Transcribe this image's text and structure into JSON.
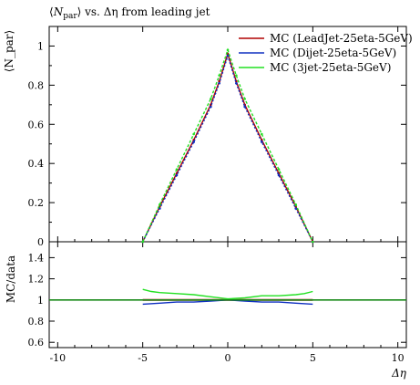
{
  "chart_data": {
    "type": "line",
    "title": "⟨N_par⟩ vs. Δη from leading jet",
    "title_parts": {
      "pre": "⟨",
      "main": "N",
      "sub": "par",
      "post": "⟩ vs. Δη from leading jet"
    },
    "xlabel": "Δη",
    "main_ylabel": "⟨N_par⟩",
    "ratio_ylabel": "MC/data",
    "xlim": [
      -10.5,
      10.5
    ],
    "main_ylim": [
      0,
      1.1
    ],
    "ratio_ylim": [
      0.55,
      1.55
    ],
    "x_ticks": [
      -10,
      -5,
      0,
      5,
      10
    ],
    "x_tick_labels": [
      "-10",
      "-5",
      "0",
      "5",
      "10"
    ],
    "main_y_ticks": [
      0,
      0.2,
      0.4,
      0.6,
      0.8,
      1
    ],
    "main_y_tick_labels": [
      "0",
      "0.2",
      "0.4",
      "0.6",
      "0.8",
      "1"
    ],
    "ratio_y_ticks": [
      0.6,
      0.8,
      1,
      1.2,
      1.4
    ],
    "ratio_y_tick_labels": [
      "0.6",
      "0.8",
      "1",
      "1.2",
      "1.4"
    ],
    "grid": false,
    "legend_position": "top-right",
    "series": [
      {
        "name": "MC (LeadJet-25eta-5GeV)",
        "color": "#b00000",
        "x": [
          -5,
          -4,
          -3,
          -2,
          -1,
          -0.5,
          0,
          0.5,
          1,
          2,
          3,
          4,
          5
        ],
        "y": [
          0.0,
          0.18,
          0.35,
          0.52,
          0.7,
          0.82,
          0.96,
          0.82,
          0.7,
          0.52,
          0.35,
          0.18,
          0.0
        ],
        "ratio_x": [
          -5,
          -4,
          -3,
          -2,
          -1,
          0,
          1,
          2,
          3,
          4,
          5
        ],
        "ratio_y": [
          1.0,
          1.0,
          1.0,
          1.0,
          1.0,
          1.0,
          1.0,
          1.0,
          1.0,
          1.0,
          1.0
        ]
      },
      {
        "name": "MC (Dijet-25eta-5GeV)",
        "color": "#1030c0",
        "x": [
          -5,
          -4,
          -3,
          -2,
          -1,
          -0.5,
          0,
          0.5,
          1,
          2,
          3,
          4,
          5
        ],
        "y": [
          0.0,
          0.17,
          0.34,
          0.51,
          0.69,
          0.81,
          0.95,
          0.81,
          0.69,
          0.51,
          0.34,
          0.17,
          0.0
        ],
        "ratio_x": [
          -5,
          -4,
          -3,
          -2,
          -1,
          0,
          1,
          2,
          3,
          4,
          5
        ],
        "ratio_y": [
          0.96,
          0.97,
          0.98,
          0.98,
          0.99,
          1.0,
          0.99,
          0.98,
          0.98,
          0.97,
          0.96
        ]
      },
      {
        "name": "MC (3jet-25eta-5GeV)",
        "color": "#22e022",
        "x": [
          -5,
          -4,
          -3,
          -2,
          -1,
          -0.5,
          0,
          0.5,
          1,
          2,
          3,
          4,
          5
        ],
        "y": [
          0.0,
          0.19,
          0.37,
          0.55,
          0.73,
          0.85,
          0.98,
          0.85,
          0.73,
          0.55,
          0.37,
          0.19,
          0.0
        ],
        "ratio_x": [
          -5,
          -4.5,
          -4,
          -3,
          -2,
          -1,
          0,
          1,
          2,
          3,
          4,
          4.5,
          5
        ],
        "ratio_y": [
          1.1,
          1.08,
          1.07,
          1.06,
          1.05,
          1.03,
          1.01,
          1.02,
          1.04,
          1.04,
          1.05,
          1.06,
          1.08
        ]
      }
    ]
  }
}
